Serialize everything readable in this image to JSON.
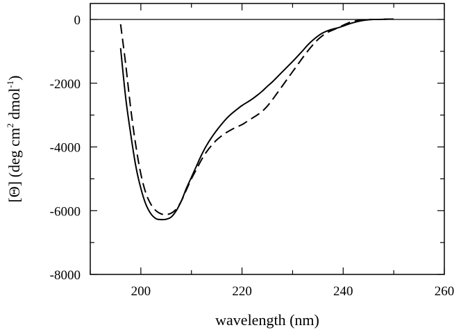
{
  "chart_data": {
    "type": "line",
    "title": "",
    "xlabel": "wavelength (nm)",
    "ylabel": {
      "parts": [
        "[Θ] (deg cm",
        "2",
        " dmol",
        "-1",
        ")"
      ]
    },
    "xlim": [
      190,
      260
    ],
    "ylim": [
      -8000,
      500
    ],
    "xticks": [
      200,
      220,
      240,
      260
    ],
    "xtick_labels": [
      "200",
      "220",
      "240",
      "260"
    ],
    "yticks": [
      0,
      -2000,
      -4000,
      -6000,
      -8000
    ],
    "ytick_labels": [
      "0",
      "-2000",
      "-4000",
      "-6000",
      "-8000"
    ],
    "zero_line": 0,
    "grid": false,
    "legend": "none",
    "series": [
      {
        "style": "solid",
        "color": "#000000",
        "x": [
          196,
          197,
          198,
          199,
          200,
          201,
          202,
          203,
          204,
          205,
          206,
          207,
          208,
          209,
          210,
          211,
          212,
          213,
          214,
          215,
          216,
          217,
          218,
          219,
          220,
          221,
          222,
          223,
          224,
          225,
          226,
          227,
          228,
          229,
          230,
          231,
          232,
          233,
          234,
          235,
          236,
          237,
          238,
          239,
          240,
          241,
          242,
          243,
          244,
          245,
          246,
          247,
          248,
          249,
          250
        ],
        "y": [
          -900,
          -2450,
          -3600,
          -4600,
          -5300,
          -5800,
          -6100,
          -6250,
          -6280,
          -6270,
          -6200,
          -6000,
          -5700,
          -5300,
          -4950,
          -4600,
          -4250,
          -3950,
          -3700,
          -3480,
          -3280,
          -3100,
          -2950,
          -2820,
          -2700,
          -2600,
          -2500,
          -2380,
          -2250,
          -2100,
          -1960,
          -1800,
          -1640,
          -1480,
          -1320,
          -1150,
          -980,
          -800,
          -650,
          -520,
          -420,
          -350,
          -300,
          -260,
          -210,
          -150,
          -100,
          -60,
          -30,
          -10,
          0,
          0,
          5,
          10,
          10
        ]
      },
      {
        "style": "dashed",
        "color": "#000000",
        "x": [
          196,
          197,
          198,
          199,
          200,
          201,
          202,
          203,
          204,
          205,
          206,
          207,
          208,
          209,
          210,
          211,
          212,
          213,
          214,
          215,
          216,
          217,
          218,
          219,
          220,
          221,
          222,
          223,
          224,
          225,
          226,
          227,
          228,
          229,
          230,
          231,
          232,
          233,
          234,
          235,
          236,
          237,
          238,
          239,
          240,
          241,
          242,
          243,
          244,
          245,
          246,
          247,
          248,
          249,
          250
        ],
        "y": [
          -150,
          -1400,
          -2800,
          -3950,
          -4850,
          -5450,
          -5800,
          -6000,
          -6100,
          -6120,
          -6080,
          -5950,
          -5700,
          -5350,
          -5000,
          -4700,
          -4400,
          -4150,
          -3950,
          -3780,
          -3650,
          -3540,
          -3450,
          -3370,
          -3300,
          -3200,
          -3100,
          -3000,
          -2880,
          -2720,
          -2520,
          -2300,
          -2080,
          -1860,
          -1640,
          -1420,
          -1200,
          -990,
          -800,
          -630,
          -500,
          -400,
          -330,
          -260,
          -180,
          -110,
          -60,
          -30,
          -10,
          0,
          0,
          0,
          5,
          10,
          10
        ]
      }
    ]
  }
}
